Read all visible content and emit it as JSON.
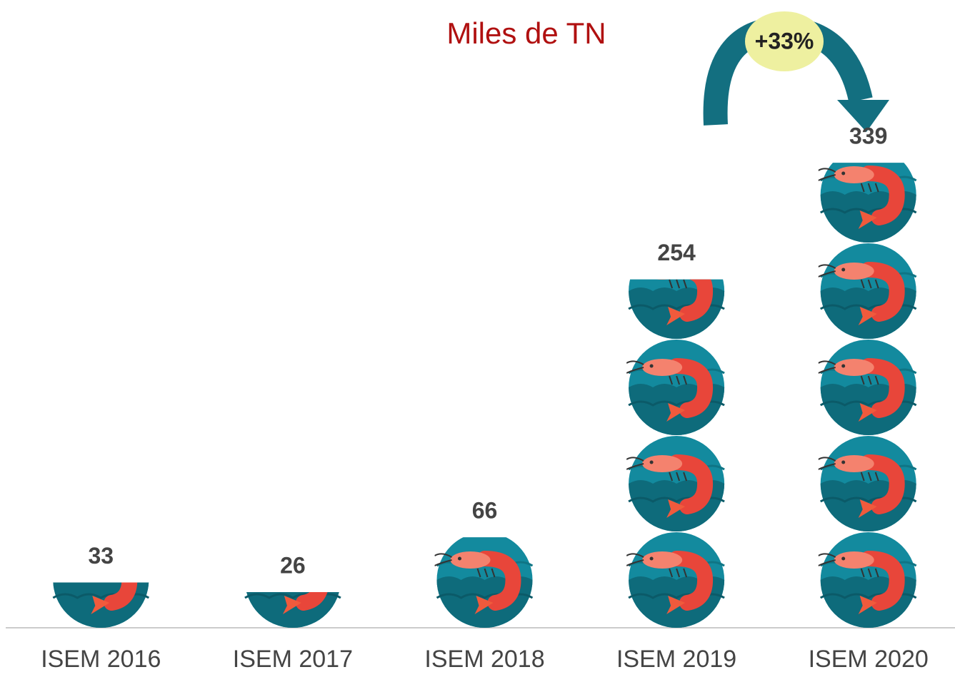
{
  "chart_data": {
    "type": "pictograph",
    "subtitle": "Miles de TN",
    "annotation": "+33%",
    "categories": [
      "ISEM 2016",
      "ISEM 2017",
      "ISEM 2018",
      "ISEM 2019",
      "ISEM 2020"
    ],
    "values": [
      33,
      26,
      66,
      254,
      339
    ],
    "color": "#138a9e",
    "ylim": [
      0,
      350
    ]
  }
}
